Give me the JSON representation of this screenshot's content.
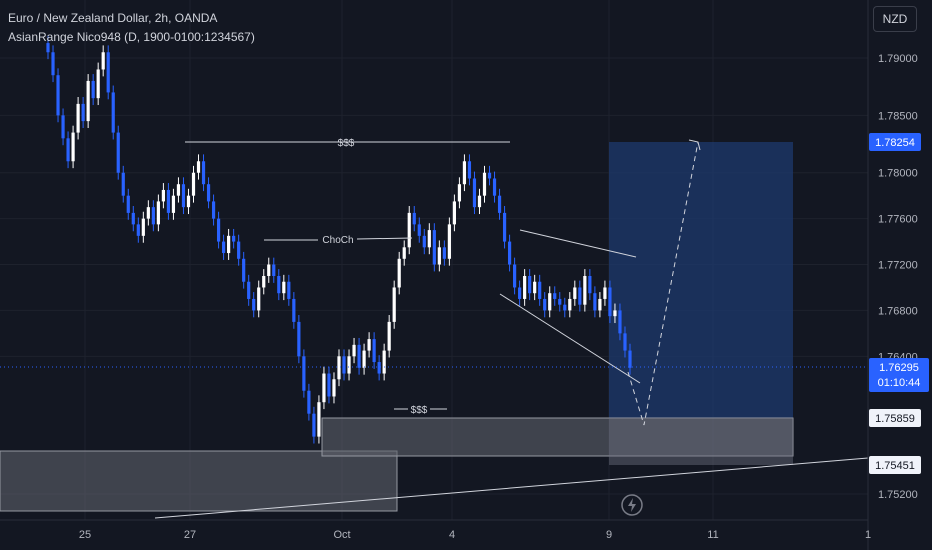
{
  "header": {
    "title": "Euro / New Zealand Dollar, 2h, OANDA",
    "indicator": "AsianRange Nico948 (D, 1900-0100:1234567)",
    "currency": "NZD"
  },
  "colors": {
    "background": "#131722",
    "candle_up": "#ffffff",
    "candle_down": "#2962ff",
    "price_line": "#2962ff",
    "grid": "#1e222d",
    "axis_text": "#b2b5be",
    "target_box": "#1e3a6e",
    "zone": "#5d606b"
  },
  "chart_data": {
    "type": "candlestick",
    "yaxis": {
      "ticks": [
        "1.79000",
        "1.78500",
        "1.78000",
        "1.77600",
        "1.77200",
        "1.76800",
        "1.76400",
        "1.75200"
      ],
      "range": [
        1.7475,
        1.7935
      ]
    },
    "xaxis": {
      "ticks": [
        "25",
        "27",
        "Oct",
        "4",
        "9",
        "11",
        "1"
      ]
    },
    "series_close": [
      1.7905,
      1.7885,
      1.785,
      1.783,
      1.781,
      1.7835,
      1.786,
      1.7845,
      1.788,
      1.7865,
      1.789,
      1.7905,
      1.787,
      1.7835,
      1.78,
      1.778,
      1.7765,
      1.7755,
      1.7745,
      1.776,
      1.777,
      1.7755,
      1.7775,
      1.7785,
      1.7765,
      1.778,
      1.779,
      1.777,
      1.778,
      1.78,
      1.781,
      1.779,
      1.7775,
      1.776,
      1.774,
      1.773,
      1.7745,
      1.774,
      1.7725,
      1.7705,
      1.769,
      1.768,
      1.77,
      1.771,
      1.772,
      1.771,
      1.7695,
      1.7705,
      1.769,
      1.767,
      1.764,
      1.761,
      1.759,
      1.757,
      1.76,
      1.7625,
      1.7605,
      1.762,
      1.764,
      1.7625,
      1.764,
      1.765,
      1.763,
      1.7645,
      1.7655,
      1.7635,
      1.7625,
      1.7645,
      1.767,
      1.77,
      1.7725,
      1.7735,
      1.7765,
      1.7755,
      1.7745,
      1.7735,
      1.775,
      1.772,
      1.7735,
      1.7725,
      1.7755,
      1.7775,
      1.779,
      1.781,
      1.7795,
      1.777,
      1.778,
      1.78,
      1.7795,
      1.778,
      1.7765,
      1.774,
      1.772,
      1.77,
      1.769,
      1.771,
      1.7695,
      1.7705,
      1.769,
      1.768,
      1.7695,
      1.769,
      1.7685,
      1.768,
      1.769,
      1.77,
      1.7685,
      1.771,
      1.7695,
      1.768,
      1.769,
      1.77,
      1.7675,
      1.768,
      1.766,
      1.7645,
      1.763
    ],
    "last_price": "1.76295",
    "countdown": "01:10:44",
    "price_labels": [
      {
        "value": "1.78254",
        "style": "blue"
      },
      {
        "value": "1.75859",
        "style": "light"
      },
      {
        "value": "1.75451",
        "style": "light"
      }
    ],
    "annotations": [
      {
        "text": "$$$",
        "kind": "high liquidity"
      },
      {
        "text": "ChoCh",
        "kind": "change of character"
      },
      {
        "text": "$$$",
        "kind": "low liquidity"
      }
    ]
  }
}
